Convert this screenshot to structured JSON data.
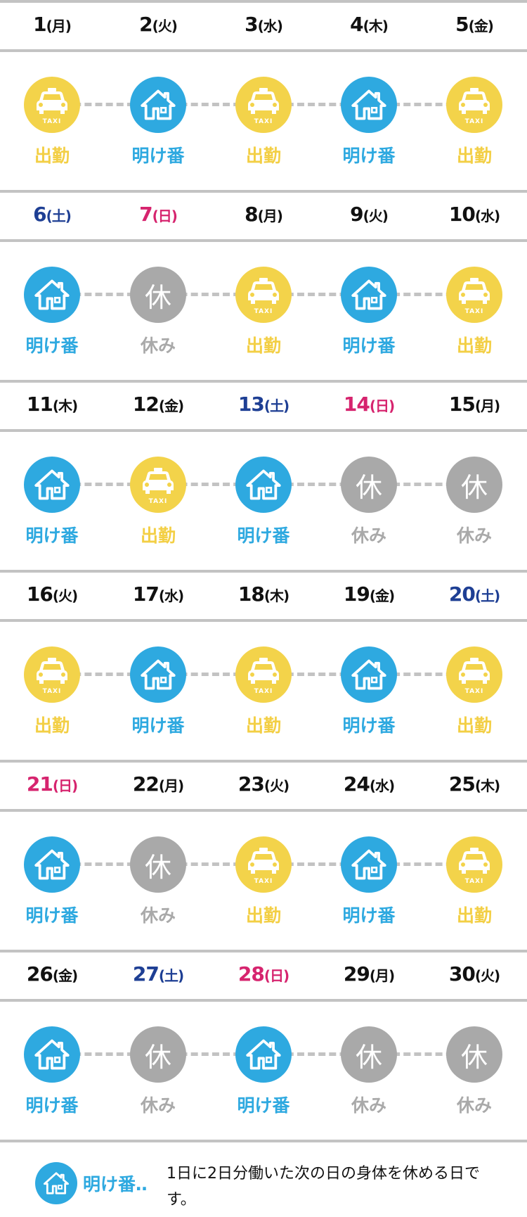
{
  "types": {
    "work": {
      "label": "出勤",
      "icon": "taxi-icon",
      "badge": "TAXI"
    },
    "off": {
      "label": "明け番",
      "icon": "house-icon"
    },
    "rest": {
      "label": "休み",
      "icon": "rest-icon",
      "glyph": "休"
    }
  },
  "colors": {
    "work": "#f3d34a",
    "off": "#2ea9e0",
    "rest": "#a9a9a9",
    "saturday": "#1e3f94",
    "sunday": "#d6246e"
  },
  "weeks": [
    [
      {
        "day": "1",
        "dow": "(月)",
        "type": "work"
      },
      {
        "day": "2",
        "dow": "(火)",
        "type": "off"
      },
      {
        "day": "3",
        "dow": "(水)",
        "type": "work"
      },
      {
        "day": "4",
        "dow": "(木)",
        "type": "off"
      },
      {
        "day": "5",
        "dow": "(金)",
        "type": "work"
      }
    ],
    [
      {
        "day": "6",
        "dow": "(土)",
        "type": "off"
      },
      {
        "day": "7",
        "dow": "(日)",
        "type": "rest"
      },
      {
        "day": "8",
        "dow": "(月)",
        "type": "work"
      },
      {
        "day": "9",
        "dow": "(火)",
        "type": "off"
      },
      {
        "day": "10",
        "dow": "(水)",
        "type": "work"
      }
    ],
    [
      {
        "day": "11",
        "dow": "(木)",
        "type": "off"
      },
      {
        "day": "12",
        "dow": "(金)",
        "type": "work"
      },
      {
        "day": "13",
        "dow": "(土)",
        "type": "off"
      },
      {
        "day": "14",
        "dow": "(日)",
        "type": "rest"
      },
      {
        "day": "15",
        "dow": "(月)",
        "type": "rest"
      }
    ],
    [
      {
        "day": "16",
        "dow": "(火)",
        "type": "work"
      },
      {
        "day": "17",
        "dow": "(水)",
        "type": "off"
      },
      {
        "day": "18",
        "dow": "(木)",
        "type": "work"
      },
      {
        "day": "19",
        "dow": "(金)",
        "type": "off"
      },
      {
        "day": "20",
        "dow": "(土)",
        "type": "work"
      }
    ],
    [
      {
        "day": "21",
        "dow": "(日)",
        "type": "off"
      },
      {
        "day": "22",
        "dow": "(月)",
        "type": "rest"
      },
      {
        "day": "23",
        "dow": "(火)",
        "type": "work"
      },
      {
        "day": "24",
        "dow": "(水)",
        "type": "off"
      },
      {
        "day": "25",
        "dow": "(木)",
        "type": "work"
      }
    ],
    [
      {
        "day": "26",
        "dow": "(金)",
        "type": "off"
      },
      {
        "day": "27",
        "dow": "(土)",
        "type": "rest"
      },
      {
        "day": "28",
        "dow": "(日)",
        "type": "off"
      },
      {
        "day": "29",
        "dow": "(月)",
        "type": "rest"
      },
      {
        "day": "30",
        "dow": "(火)",
        "type": "rest"
      }
    ]
  ],
  "legend": {
    "label": "明け番‥",
    "text": "1日に2日分働いた次の日の身体を休める日です。"
  }
}
